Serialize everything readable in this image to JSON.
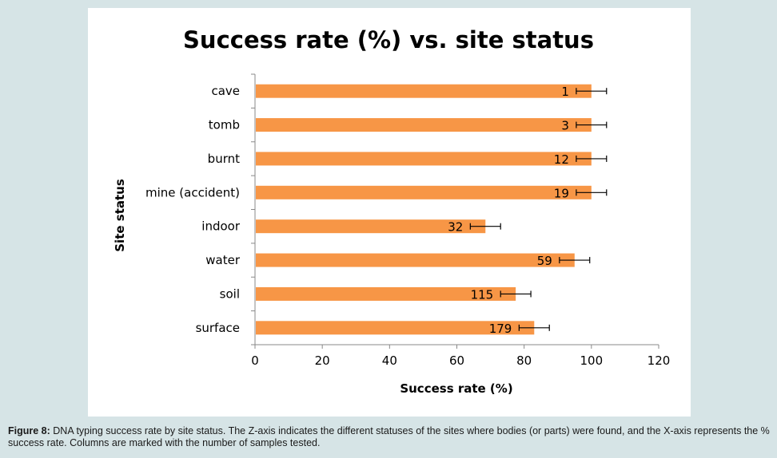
{
  "chart_data": {
    "type": "bar",
    "orientation": "horizontal",
    "title": "Success rate (%) vs. site status",
    "xlabel": "Success rate (%)",
    "ylabel": "Site status",
    "xlim": [
      0,
      120
    ],
    "x_ticks": [
      "0",
      "20",
      "40",
      "60",
      "80",
      "100",
      "120"
    ],
    "categories": [
      "cave",
      "tomb",
      "burnt",
      "mine (accident)",
      "indoor",
      "water",
      "soil",
      "surface"
    ],
    "values": [
      100,
      100,
      100,
      100,
      68.5,
      95,
      77.5,
      83
    ],
    "error": [
      4.5,
      4.5,
      4.5,
      4.5,
      4.5,
      4.5,
      4.5,
      4.5
    ],
    "data_labels": [
      "1",
      "3",
      "12",
      "19",
      "32",
      "59",
      "115",
      "179"
    ],
    "bar_color": "#f79646",
    "grid": false,
    "legend": "none"
  },
  "caption": {
    "label": "Figure 8:",
    "text": "DNA typing success rate by site status. The Z-axis indicates the different statuses of the sites where bodies (or parts) were found, and the X-axis represents the % success rate. Columns are marked with the number of samples tested."
  }
}
